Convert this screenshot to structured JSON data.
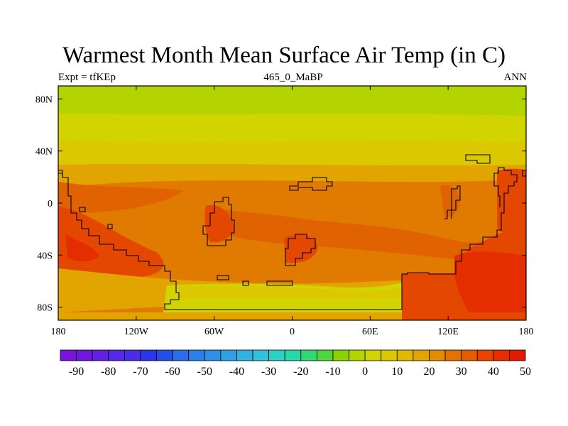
{
  "title": "Warmest Month Mean Surface Air Temp (in C)",
  "subtitle_left": "Expt = tfKEp",
  "subtitle_center": "465_0_MaBP",
  "subtitle_right": "ANN",
  "map": {
    "lon_range": [
      -180,
      180
    ],
    "lat_range": [
      -90,
      90
    ],
    "x_ticks": [
      {
        "value": -180,
        "label": "180"
      },
      {
        "value": -120,
        "label": "120W"
      },
      {
        "value": -60,
        "label": "60W"
      },
      {
        "value": 0,
        "label": "0"
      },
      {
        "value": 60,
        "label": "60E"
      },
      {
        "value": 120,
        "label": "120E"
      },
      {
        "value": 180,
        "label": "180"
      }
    ],
    "y_ticks": [
      {
        "value": 80,
        "label": "80N"
      },
      {
        "value": 40,
        "label": "40N"
      },
      {
        "value": 0,
        "label": "0"
      },
      {
        "value": -40,
        "label": "40S"
      },
      {
        "value": -80,
        "label": "80S"
      }
    ]
  },
  "colorbar": {
    "colors": [
      "#7a12dc",
      "#6f18e0",
      "#6420e4",
      "#5828e8",
      "#4a2ee6",
      "#2a36e8",
      "#1f50e8",
      "#2a6cea",
      "#2c7fe8",
      "#2f8fe6",
      "#30a0e2",
      "#32b2de",
      "#34c2da",
      "#2ed0c6",
      "#28d8a8",
      "#30d878",
      "#52d440",
      "#8cd200",
      "#b4d400",
      "#d2d400",
      "#dcc800",
      "#e0b800",
      "#e2a400",
      "#e48c00",
      "#e47200",
      "#e65c00",
      "#e64400",
      "#e42e00",
      "#e21a00"
    ],
    "labels": [
      "-90",
      "-80",
      "-70",
      "-60",
      "-50",
      "-40",
      "-30",
      "-20",
      "-10",
      "0",
      "10",
      "20",
      "30",
      "40",
      "50"
    ]
  },
  "chart_data": {
    "type": "heatmap",
    "title": "Warmest Month Mean Surface Air Temp (in C)",
    "variable": "Warmest Month Mean Surface Air Temp",
    "units": "C",
    "bands": [
      {
        "lat_range": [
          75,
          90
        ],
        "value_range": [
          5,
          10
        ]
      },
      {
        "lat_range": [
          55,
          75
        ],
        "value_range": [
          15,
          20
        ]
      },
      {
        "lat_range": [
          35,
          55
        ],
        "value_range": [
          20,
          25
        ]
      },
      {
        "lat_range": [
          -30,
          35
        ],
        "value_range": [
          25,
          35
        ]
      },
      {
        "lat_range": [
          -55,
          -30
        ],
        "value_range": [
          30,
          45
        ]
      },
      {
        "lat_range": [
          -80,
          -55
        ],
        "value_range": [
          20,
          25
        ]
      }
    ],
    "land_regions": [
      {
        "lon_range": [
          -110,
          80
        ],
        "lat_range": [
          -90,
          -60
        ],
        "value_range": [
          15,
          20
        ]
      },
      {
        "lon_range": [
          85,
          135
        ],
        "lat_range": [
          -90,
          -50
        ],
        "value_range": [
          35,
          45
        ]
      },
      {
        "lon_range": [
          130,
          180
        ],
        "lat_range": [
          -90,
          20
        ],
        "value_range": [
          40,
          50
        ]
      }
    ]
  }
}
